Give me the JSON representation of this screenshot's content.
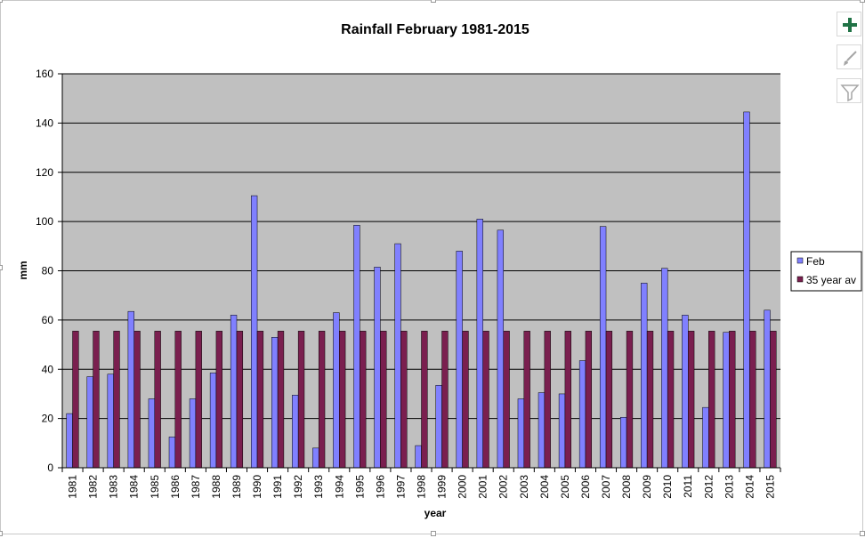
{
  "chart_data": {
    "type": "bar",
    "title": "Rainfall February 1981-2015",
    "xlabel": "year",
    "ylabel": "mm",
    "ylim": [
      0,
      160
    ],
    "yticks": [
      0,
      20,
      40,
      60,
      80,
      100,
      120,
      140,
      160
    ],
    "grid": true,
    "legend_position": "right",
    "categories": [
      "1981",
      "1982",
      "1983",
      "1984",
      "1985",
      "1986",
      "1987",
      "1988",
      "1989",
      "1990",
      "1991",
      "1992",
      "1993",
      "1994",
      "1995",
      "1996",
      "1997",
      "1998",
      "1999",
      "2000",
      "2001",
      "2002",
      "2003",
      "2004",
      "2005",
      "2006",
      "2007",
      "2008",
      "2009",
      "2010",
      "2011",
      "2012",
      "2013",
      "2014",
      "2015"
    ],
    "series": [
      {
        "name": "Feb",
        "color": "#8080ff",
        "values": [
          22,
          37,
          38,
          63.5,
          28,
          12.5,
          28,
          38.5,
          62,
          110.5,
          53,
          29.5,
          8,
          63,
          98.5,
          81.5,
          91,
          9,
          33.5,
          88,
          101,
          96.5,
          28,
          30.5,
          30,
          43.5,
          98,
          20.5,
          75,
          81,
          62,
          24.5,
          55,
          144.5,
          64
        ]
      },
      {
        "name": "35 year av",
        "color": "#7a1f4f",
        "values": [
          55.5,
          55.5,
          55.5,
          55.5,
          55.5,
          55.5,
          55.5,
          55.5,
          55.5,
          55.5,
          55.5,
          55.5,
          55.5,
          55.5,
          55.5,
          55.5,
          55.5,
          55.5,
          55.5,
          55.5,
          55.5,
          55.5,
          55.5,
          55.5,
          55.5,
          55.5,
          55.5,
          55.5,
          55.5,
          55.5,
          55.5,
          55.5,
          55.5,
          55.5,
          55.5
        ]
      }
    ],
    "plot_background": "#c0c0c0"
  },
  "toolbar": {
    "buttons": [
      {
        "name": "chart-elements-button",
        "icon": "plus-icon",
        "color": "#217346"
      },
      {
        "name": "chart-styles-button",
        "icon": "brush-icon",
        "color": "#a6a6a6"
      },
      {
        "name": "chart-filters-button",
        "icon": "filter-icon",
        "color": "#a6a6a6"
      }
    ]
  }
}
